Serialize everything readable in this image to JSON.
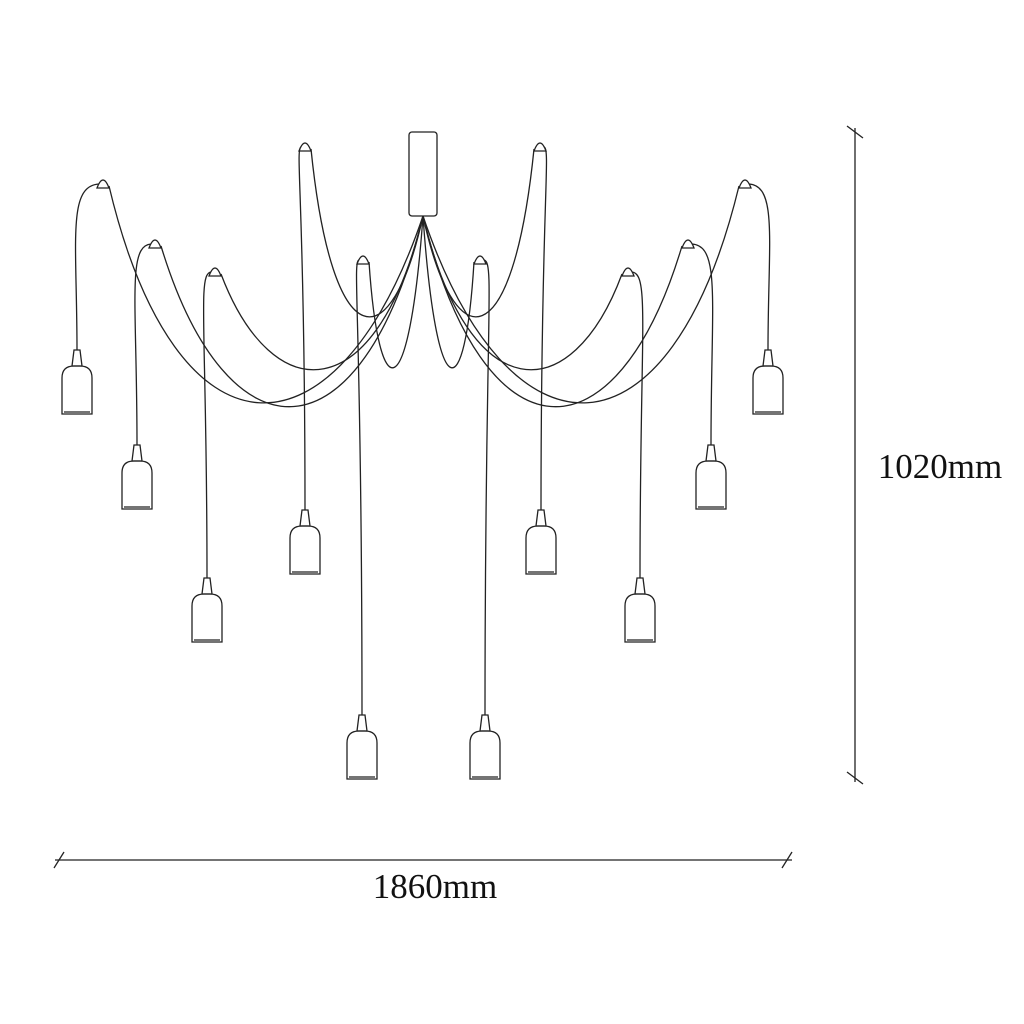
{
  "dimensions": {
    "height": "1020mm",
    "width": "1860mm"
  }
}
